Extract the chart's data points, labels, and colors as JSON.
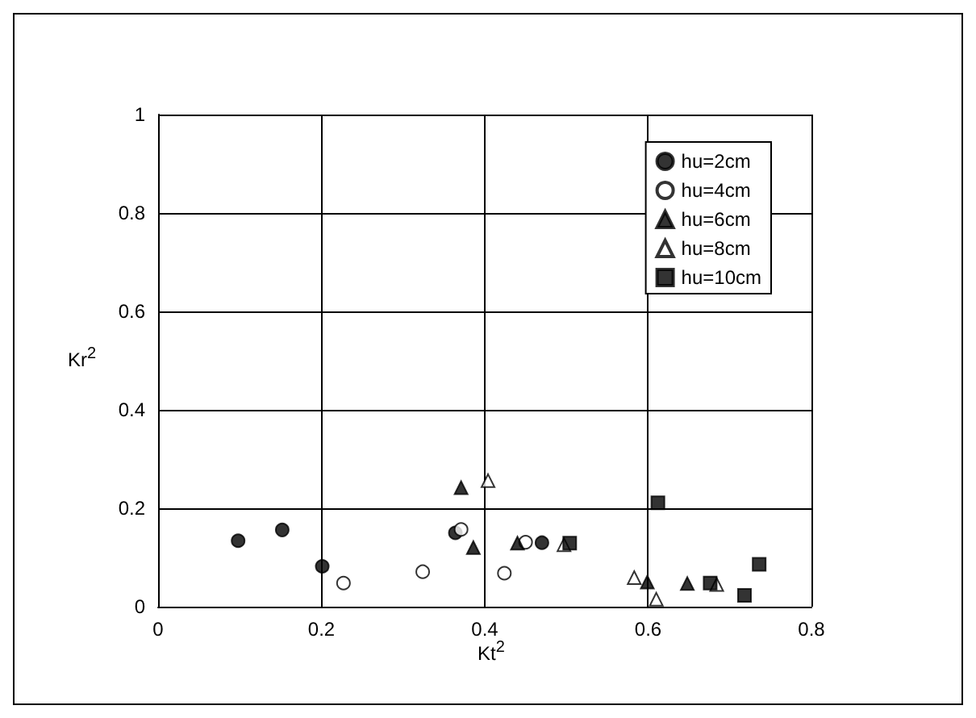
{
  "chart_data": {
    "type": "scatter",
    "xlabel": "Kt$^{2}$",
    "ylabel": "Kr$^{2}$",
    "xlim": [
      0,
      0.8
    ],
    "xticks": [
      0,
      0.2,
      0.4,
      0.6,
      0.8
    ],
    "ylim": [
      0,
      1
    ],
    "yticks": [
      0,
      0.2,
      0.4,
      0.6,
      0.8,
      1
    ],
    "grid": true,
    "legend": "top right",
    "series": [
      {
        "name": "hu=2cm",
        "color": "#000000",
        "marker": "circle",
        "x": [
          0.098,
          0.152,
          0.201,
          0.364,
          0.47
        ],
        "values": [
          0.134,
          0.156,
          0.082,
          0.15,
          0.13
        ]
      },
      {
        "name": "hu=4cm",
        "color": "#ffffff",
        "marker": "circle",
        "x": [
          0.227,
          0.324,
          0.371,
          0.424,
          0.45
        ],
        "values": [
          0.048,
          0.071,
          0.157,
          0.068,
          0.131
        ]
      },
      {
        "name": "hu=6cm",
        "color": "#000000",
        "marker": "triangle",
        "x": [
          0.371,
          0.386,
          0.44,
          0.599,
          0.648
        ],
        "values": [
          0.242,
          0.12,
          0.129,
          0.05,
          0.047
        ]
      },
      {
        "name": "hu=8cm",
        "color": "#ffffff",
        "marker": "triangle",
        "x": [
          0.404,
          0.497,
          0.583,
          0.61,
          0.684
        ],
        "values": [
          0.256,
          0.126,
          0.059,
          0.015,
          0.045
        ]
      },
      {
        "name": "hu=10cm",
        "color": "#000000",
        "marker": "square",
        "x": [
          0.504,
          0.612,
          0.676,
          0.736,
          0.718
        ],
        "values": [
          0.129,
          0.211,
          0.048,
          0.086,
          0.023
        ]
      }
    ]
  }
}
